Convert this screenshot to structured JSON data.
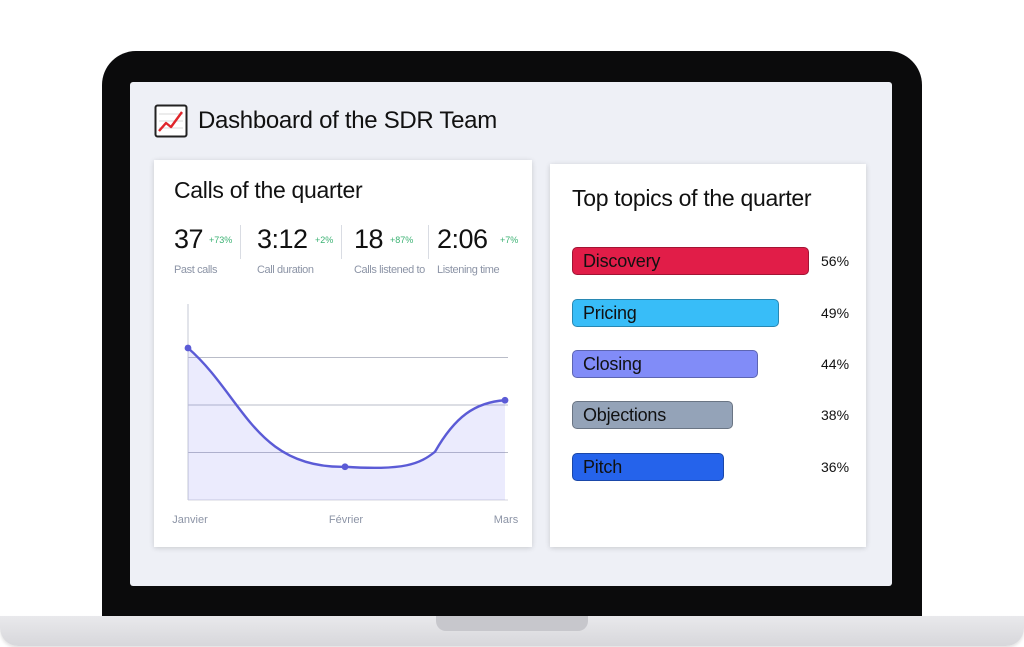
{
  "header": {
    "title": "Dashboard of the SDR Team",
    "icon": "chart-increasing-icon"
  },
  "calls_card": {
    "title": "Calls of the quarter",
    "stats": [
      {
        "value": "37",
        "delta": "+73%",
        "label": "Past calls"
      },
      {
        "value": "3:12",
        "delta": "+2%",
        "label": "Call duration"
      },
      {
        "value": "18",
        "delta": "+87%",
        "label": "Calls listened to"
      },
      {
        "value": "2:06",
        "delta": "+7%",
        "label": "Listening time"
      }
    ]
  },
  "chart_data": {
    "type": "area",
    "categories": [
      "Janvier",
      "Février",
      "Mars"
    ],
    "series": [
      {
        "values": [
          32,
          7,
          21
        ]
      }
    ],
    "ylim": [
      0,
      40
    ],
    "grid": true,
    "color": "#5b5bd6"
  },
  "topics_card": {
    "title": "Top topics of the quarter",
    "topics": [
      {
        "label": "Discovery",
        "value": 56,
        "pct": "56%",
        "color": "#e11d48"
      },
      {
        "label": "Pricing",
        "value": 49,
        "pct": "49%",
        "color": "#38bdf8"
      },
      {
        "label": "Closing",
        "value": 44,
        "pct": "44%",
        "color": "#818cf8"
      },
      {
        "label": "Objections",
        "value": 38,
        "pct": "38%",
        "color": "#94a3b8"
      },
      {
        "label": "Pitch",
        "value": 36,
        "pct": "36%",
        "color": "#2563eb"
      }
    ]
  }
}
